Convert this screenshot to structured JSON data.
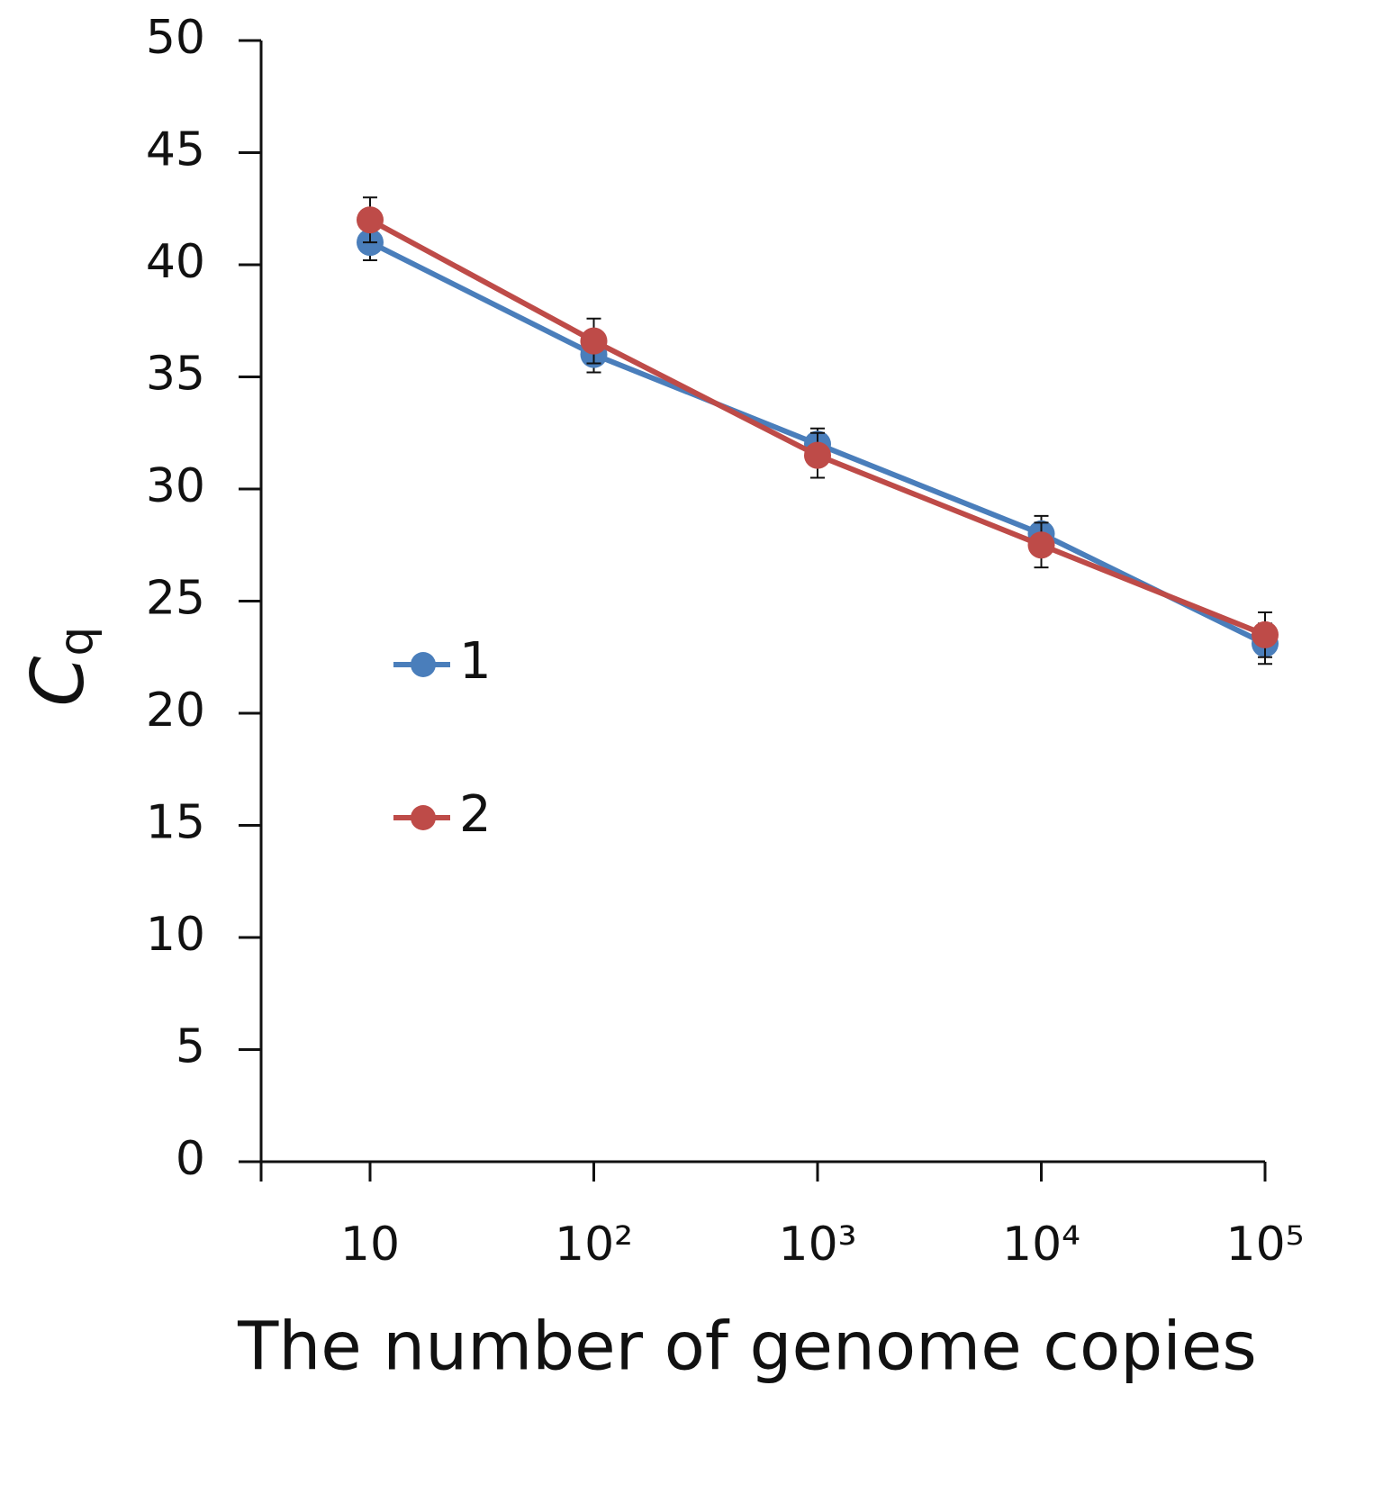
{
  "chart_data": {
    "type": "line",
    "ylabel": {
      "text": "C",
      "subscript": "q"
    },
    "xlabel": "The number of genome copies",
    "categories": [
      "10",
      "10²",
      "10³",
      "10⁴",
      "10⁵"
    ],
    "series": [
      {
        "name": "1",
        "color": "#4a7ebb",
        "values": [
          41,
          36,
          32,
          28,
          23.1
        ],
        "errors": [
          0.8,
          0.8,
          0.7,
          0.8,
          0.9
        ]
      },
      {
        "name": "2",
        "color": "#be4b48",
        "values": [
          42,
          36.6,
          31.5,
          27.5,
          23.5
        ],
        "errors": [
          1.0,
          1.0,
          1.0,
          1.0,
          1.0
        ]
      }
    ],
    "ylim": [
      0,
      50
    ],
    "yticks": [
      0,
      5,
      10,
      15,
      20,
      25,
      30,
      35,
      40,
      45,
      50
    ],
    "grid": false,
    "legend": "left"
  }
}
